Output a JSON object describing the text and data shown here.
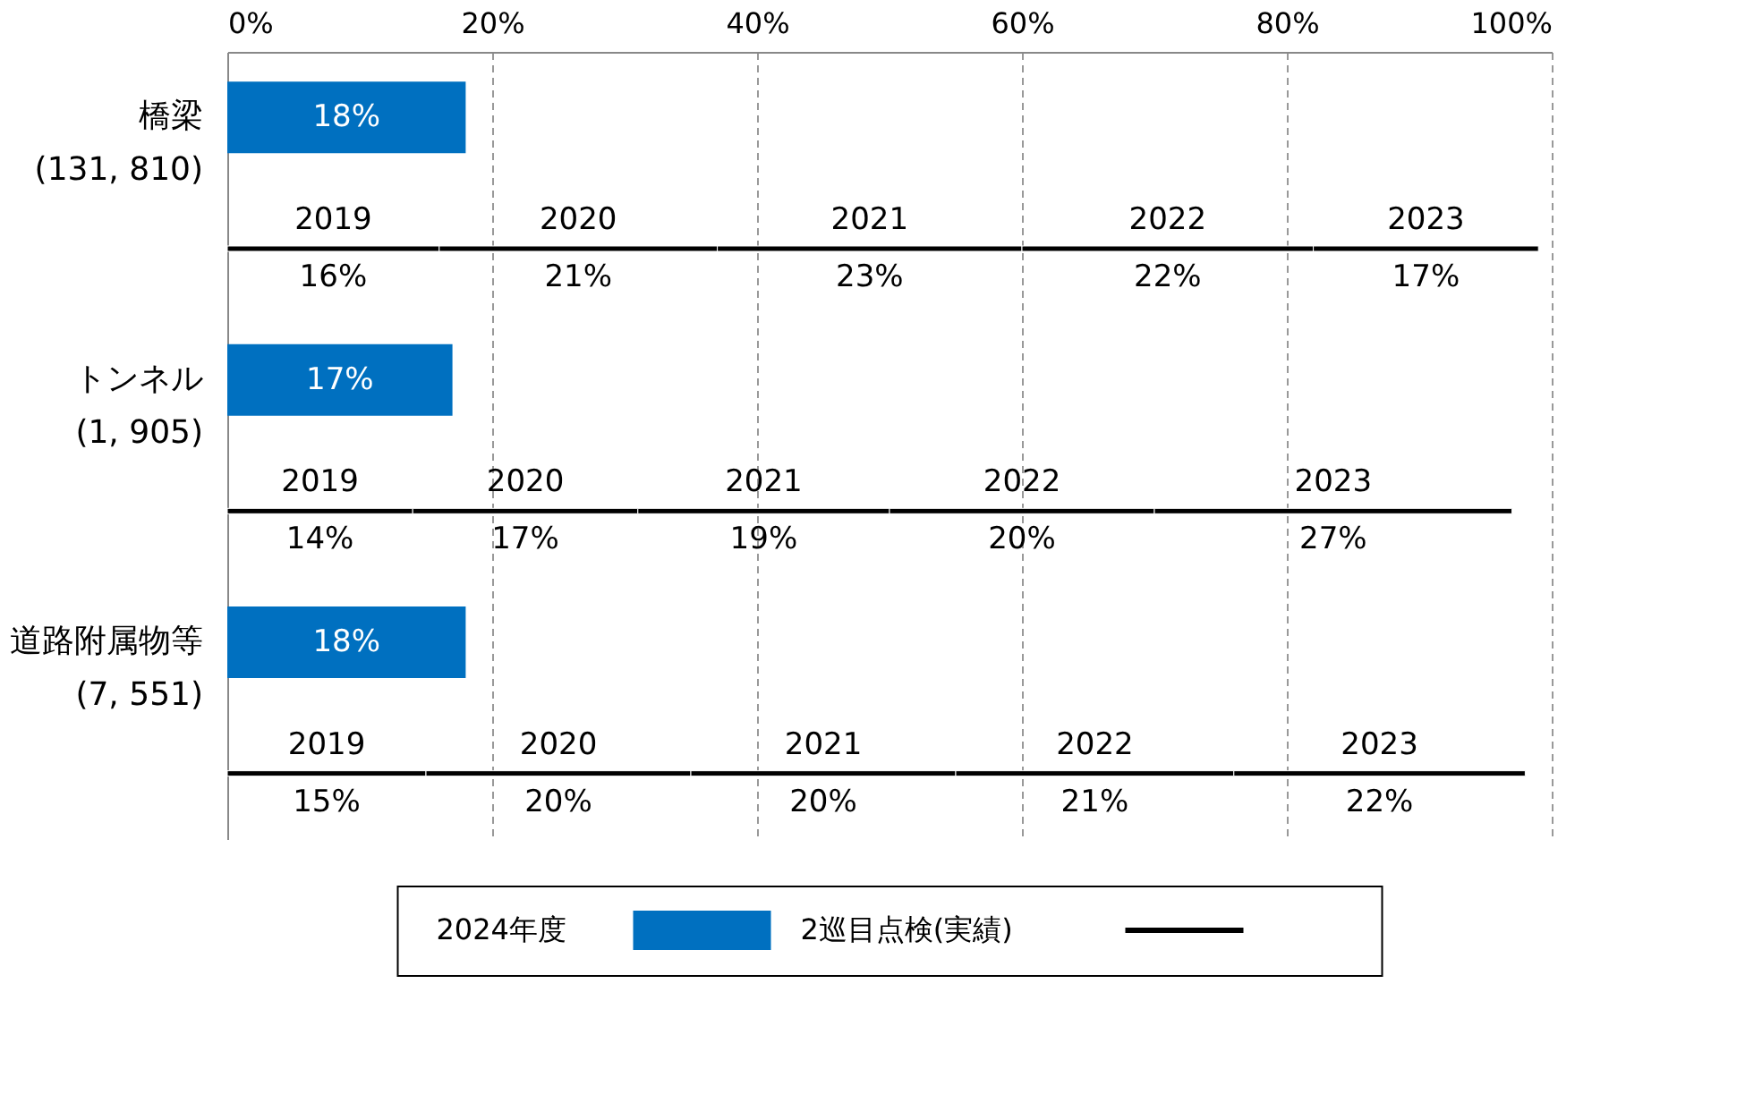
{
  "chart_data": {
    "type": "bar",
    "orientation": "horizontal",
    "stacked": true,
    "legend": "bottom",
    "grid": "x",
    "categories": [
      "橋梁\n(131, 810)",
      null,
      "トンネル\n(1, 905)",
      null,
      "道路附属物等\n(7, 551)",
      null
    ],
    "xlim": [
      0,
      100
    ],
    "xticks": [
      {
        "value": 0,
        "label": "0%"
      },
      {
        "value": 20,
        "label": "20%"
      },
      {
        "value": 40,
        "label": "40%"
      },
      {
        "value": 60,
        "label": "60%"
      },
      {
        "value": 80,
        "label": "80%"
      },
      {
        "value": 100,
        "label": "100%"
      }
    ],
    "series": [
      {
        "name": "2024年度",
        "color": "#0070c0",
        "values": [
          18,
          null,
          17,
          null,
          18,
          null
        ],
        "value_labels": [
          "18%",
          null,
          "17%",
          null,
          "18%",
          null
        ]
      },
      {
        "name": "2019",
        "color": "#000000",
        "values": [
          null,
          16,
          null,
          14,
          null,
          15
        ],
        "value_labels": [
          null,
          "16%",
          null,
          "14%",
          null,
          "15%"
        ]
      },
      {
        "name": "2020",
        "color": "#000000",
        "values": [
          null,
          21,
          null,
          17,
          null,
          20
        ],
        "value_labels": [
          null,
          "21%",
          null,
          "17%",
          null,
          "20%"
        ]
      },
      {
        "name": "2021",
        "color": "#000000",
        "values": [
          null,
          23,
          null,
          19,
          null,
          20
        ],
        "value_labels": [
          null,
          "23%",
          null,
          "19%",
          null,
          "20%"
        ]
      },
      {
        "name": "2022",
        "color": "#000000",
        "values": [
          null,
          22,
          null,
          20,
          null,
          21
        ],
        "value_labels": [
          null,
          "22%",
          null,
          "20%",
          null,
          "21%"
        ]
      },
      {
        "name": "2023",
        "color": "#000000",
        "values": [
          null,
          17,
          null,
          27,
          null,
          22
        ],
        "value_labels": [
          null,
          "17%",
          null,
          "27%",
          null,
          "22%"
        ]
      }
    ],
    "annotations": [
      "2巡目点検(実績)"
    ]
  }
}
